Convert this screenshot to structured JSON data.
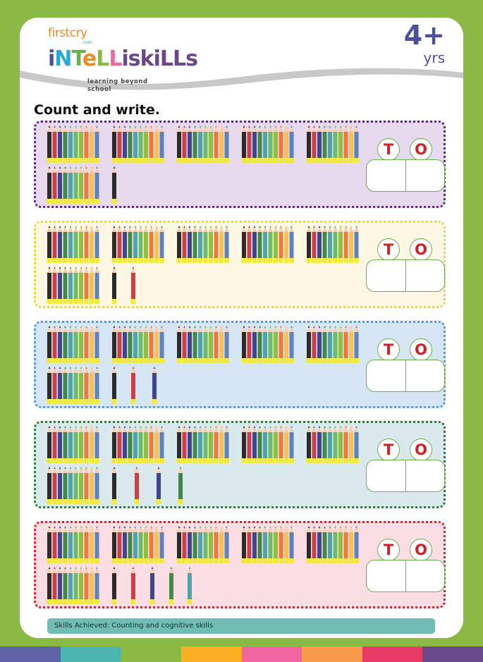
{
  "header": {
    "logo_top": "firstcry",
    "logo_com": ".com",
    "logo_name": "iNTeLLiskiLLs",
    "logo_tagline": "learning beyond school",
    "age_number": "4+",
    "age_unit": "yrs"
  },
  "title": "Count and write.",
  "place_value_labels": {
    "tens": "T",
    "ones": "O"
  },
  "pencil_bundle_colors": [
    "#2b2b2b",
    "#cf3d45",
    "#3e4592",
    "#3f8a4a",
    "#4fa3b0",
    "#6dbb6a",
    "#8fc03a",
    "#f07a35",
    "#fcbf52",
    "#5b82c4"
  ],
  "rows": [
    {
      "tens": 6,
      "ones": 1,
      "background": "#e7daee",
      "border": "#5b2a86",
      "single_colors": [
        "#2b2b2b"
      ]
    },
    {
      "tens": 6,
      "ones": 2,
      "background": "#fdf8e4",
      "border": "#f1d245",
      "single_colors": [
        "#2b2b2b",
        "#cf3d45"
      ]
    },
    {
      "tens": 6,
      "ones": 3,
      "background": "#d6e6f4",
      "border": "#5a9bd5",
      "single_colors": [
        "#2b2b2b",
        "#cf3d45",
        "#3e4592"
      ]
    },
    {
      "tens": 6,
      "ones": 4,
      "background": "#d9e9ee",
      "border": "#2f7d32",
      "single_colors": [
        "#2b2b2b",
        "#cf3d45",
        "#3e4592",
        "#3f8a4a"
      ]
    },
    {
      "tens": 6,
      "ones": 5,
      "background": "#fbdde4",
      "border": "#d9232e",
      "single_colors": [
        "#2b2b2b",
        "#cf3d45",
        "#3e4592",
        "#3f8a4a",
        "#4fa3b0"
      ]
    }
  ],
  "footer": {
    "skills": "Skills Achieved: Counting and cognitive skills"
  },
  "stripe_colors": [
    "#5c62a4",
    "#4bb3b0",
    "#8ab944",
    "#fbb024",
    "#ef66a0",
    "#f99b4b",
    "#e83a64",
    "#6a4789"
  ]
}
